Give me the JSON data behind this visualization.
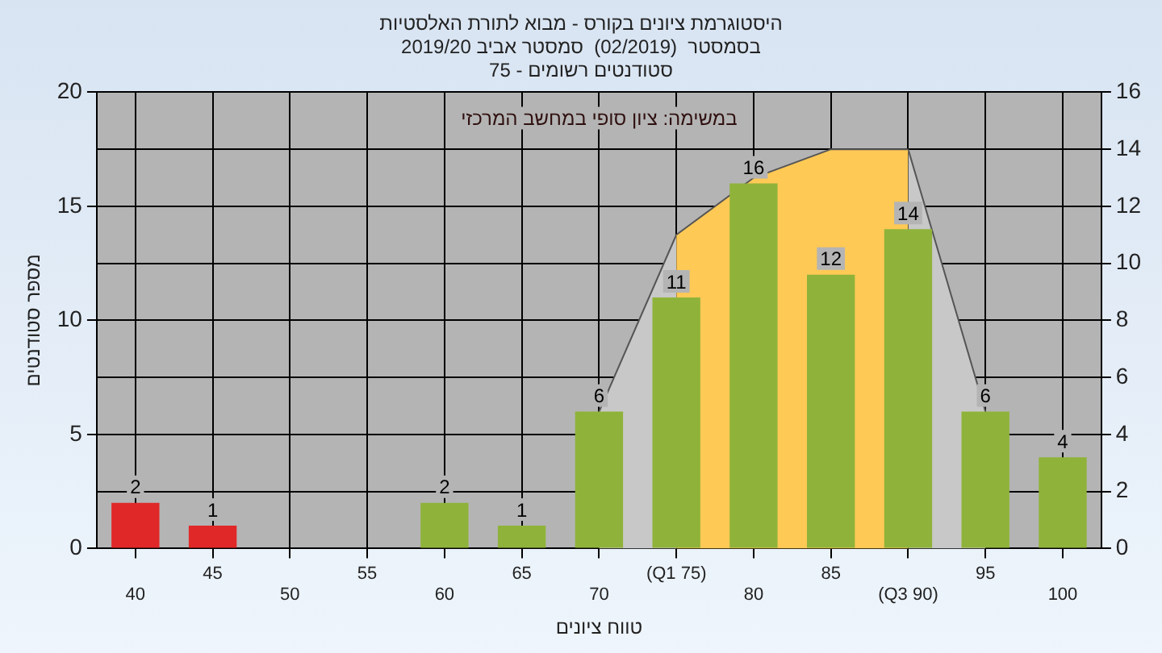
{
  "chart_data": {
    "type": "bar",
    "title": "היסטוגרמת ציונים בקורס - מבוא לתורת האלסטיות",
    "subtitle": "בסמסטר  (02/2019)  סמסטר אביב 2019/20\nסטודנטים רשומים - 75",
    "xlabel": "טווח ציונים",
    "ylabel": "מספר סטודנטים",
    "annotations": [
      "במשימה: ציון סופי במחשב המרכזי"
    ],
    "categories": [
      "40",
      "45",
      "50",
      "55",
      "60",
      "65",
      "70",
      "(Q1 75)",
      "80",
      "85",
      "(Q3 90)",
      "95",
      "100"
    ],
    "series": [
      {
        "colors": [
          "#e02828",
          "#e02828",
          "#8fb33a",
          "#8fb33a",
          "#8fb33a",
          "#8fb33a",
          "#8fb33a",
          "#8fb33a",
          "#8fb33a",
          "#8fb33a",
          "#8fb33a",
          "#8fb33a",
          "#8fb33a"
        ],
        "values": [
          2,
          1,
          0,
          0,
          2,
          1,
          6,
          11,
          16,
          12,
          14,
          6,
          4
        ],
        "value_labels": [
          "2",
          "1",
          null,
          null,
          "2",
          "1",
          "6",
          "11",
          "16",
          "12",
          "14",
          "6",
          "4"
        ]
      },
      {
        "type": "area",
        "axis": "y2",
        "color": "#ffc955",
        "values": [
          null,
          null,
          null,
          null,
          null,
          null,
          null,
          11,
          13,
          14,
          14,
          null,
          null
        ]
      },
      {
        "type": "area",
        "axis": "y2",
        "color": "#c8c8c8",
        "values": [
          null,
          null,
          null,
          null,
          null,
          null,
          4.8,
          11,
          null,
          null,
          14,
          4.8,
          null
        ]
      }
    ],
    "ylim": [
      0,
      20
    ],
    "yticks": [
      0,
      5,
      10,
      15,
      20
    ],
    "y2lim": [
      0,
      16
    ],
    "y2ticks": [
      0,
      2,
      4,
      6,
      8,
      10,
      12,
      14,
      16
    ],
    "grid": true,
    "legend": false
  }
}
